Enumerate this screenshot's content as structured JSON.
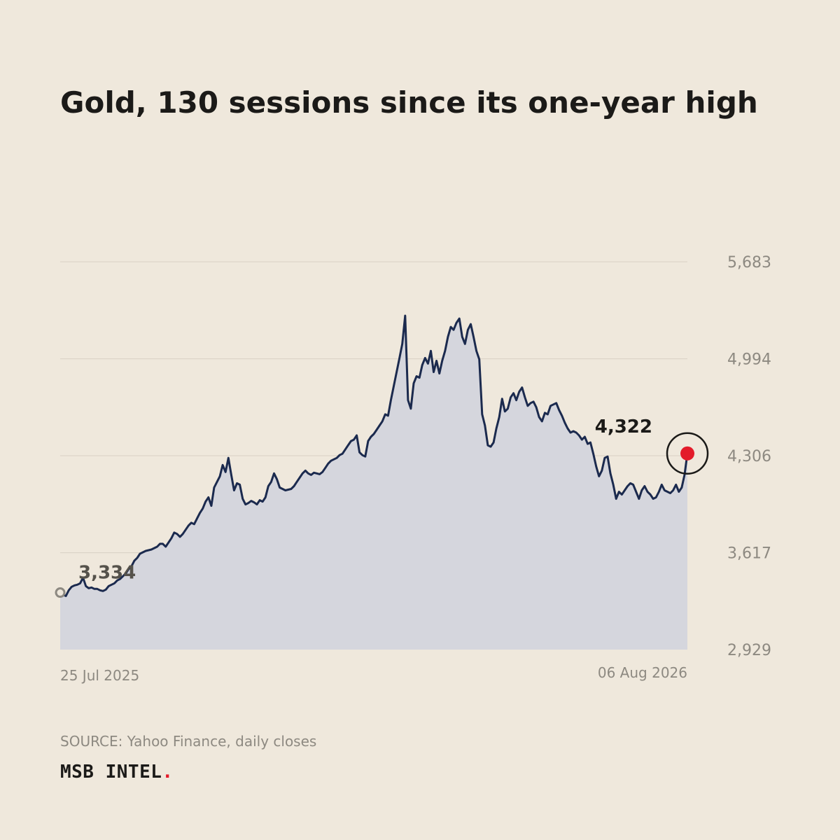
{
  "title": "Gold, 130 sessions since its one-year high",
  "source": "SOURCE: Yahoo Finance, daily closes",
  "brand": {
    "name": "MSB INTEL",
    "dot": "."
  },
  "colors": {
    "background": "#efe8dc",
    "line": "#1b2a4e",
    "area": "#d5d6dd",
    "grid": "#d8d0c4",
    "accent": "#e31b2a",
    "start_marker": "#8d8981"
  },
  "chart_data": {
    "type": "area",
    "title": "Gold, 130 sessions since its one-year high",
    "xlabel": "",
    "ylabel": "",
    "x_range": [
      "25 Jul 2025",
      "06 Aug 2026"
    ],
    "x_tick_labels": [
      "25 Jul 2025",
      "06 Aug 2026"
    ],
    "ylim": [
      2929,
      5683
    ],
    "y_ticks": [
      2929,
      3617,
      4306,
      4994,
      5683
    ],
    "y_tick_labels": [
      "2,929",
      "3,617",
      "4,306",
      "4,994",
      "5,683"
    ],
    "grid": true,
    "legend": "none",
    "annotations": {
      "start_label": "3,334",
      "end_label": "4,322"
    },
    "series": [
      {
        "values": [
          3334,
          3320,
          3310,
          3350,
          3375,
          3385,
          3390,
          3400,
          3440,
          3380,
          3365,
          3370,
          3360,
          3360,
          3350,
          3345,
          3355,
          3380,
          3390,
          3400,
          3420,
          3430,
          3450,
          3470,
          3500,
          3520,
          3560,
          3580,
          3610,
          3620,
          3630,
          3635,
          3640,
          3650,
          3660,
          3680,
          3680,
          3660,
          3690,
          3720,
          3760,
          3750,
          3730,
          3750,
          3780,
          3810,
          3830,
          3820,
          3860,
          3900,
          3930,
          3980,
          4010,
          3950,
          4080,
          4120,
          4160,
          4240,
          4190,
          4290,
          4170,
          4060,
          4110,
          4100,
          4000,
          3960,
          3970,
          3985,
          3975,
          3960,
          3990,
          3980,
          4010,
          4090,
          4120,
          4180,
          4140,
          4080,
          4070,
          4060,
          4065,
          4070,
          4090,
          4120,
          4150,
          4180,
          4200,
          4180,
          4170,
          4185,
          4180,
          4175,
          4190,
          4220,
          4250,
          4270,
          4280,
          4290,
          4310,
          4320,
          4350,
          4380,
          4410,
          4420,
          4450,
          4330,
          4310,
          4300,
          4410,
          4440,
          4460,
          4490,
          4520,
          4550,
          4600,
          4590,
          4700,
          4800,
          4900,
          5000,
          5100,
          5300,
          4700,
          4640,
          4820,
          4870,
          4860,
          4950,
          5000,
          4960,
          5050,
          4900,
          4980,
          4890,
          4980,
          5050,
          5150,
          5220,
          5200,
          5250,
          5280,
          5150,
          5100,
          5200,
          5240,
          5150,
          5050,
          4990,
          4600,
          4520,
          4380,
          4370,
          4400,
          4500,
          4580,
          4710,
          4620,
          4640,
          4720,
          4750,
          4700,
          4760,
          4790,
          4720,
          4660,
          4680,
          4690,
          4650,
          4580,
          4550,
          4610,
          4600,
          4660,
          4670,
          4680,
          4630,
          4590,
          4540,
          4500,
          4470,
          4480,
          4470,
          4450,
          4420,
          4440,
          4390,
          4400,
          4320,
          4230,
          4160,
          4200,
          4290,
          4300,
          4180,
          4100,
          4000,
          4050,
          4030,
          4060,
          4090,
          4110,
          4100,
          4050,
          4000,
          4060,
          4090,
          4050,
          4030,
          4000,
          4010,
          4050,
          4100,
          4060,
          4050,
          4040,
          4060,
          4100,
          4050,
          4080,
          4170,
          4322
        ]
      }
    ]
  }
}
